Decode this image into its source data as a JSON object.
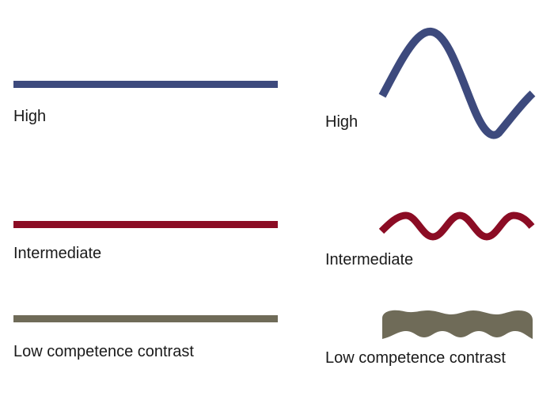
{
  "colors": {
    "high": "#3d4a7d",
    "intermediate": "#8b0c24",
    "low": "#6f6b58"
  },
  "left_column": {
    "high_label": "High",
    "intermediate_label": "Intermediate",
    "low_label": "Low competence contrast"
  },
  "right_column": {
    "high_label": "High",
    "intermediate_label": "Intermediate",
    "low_label": "Low competence contrast"
  }
}
